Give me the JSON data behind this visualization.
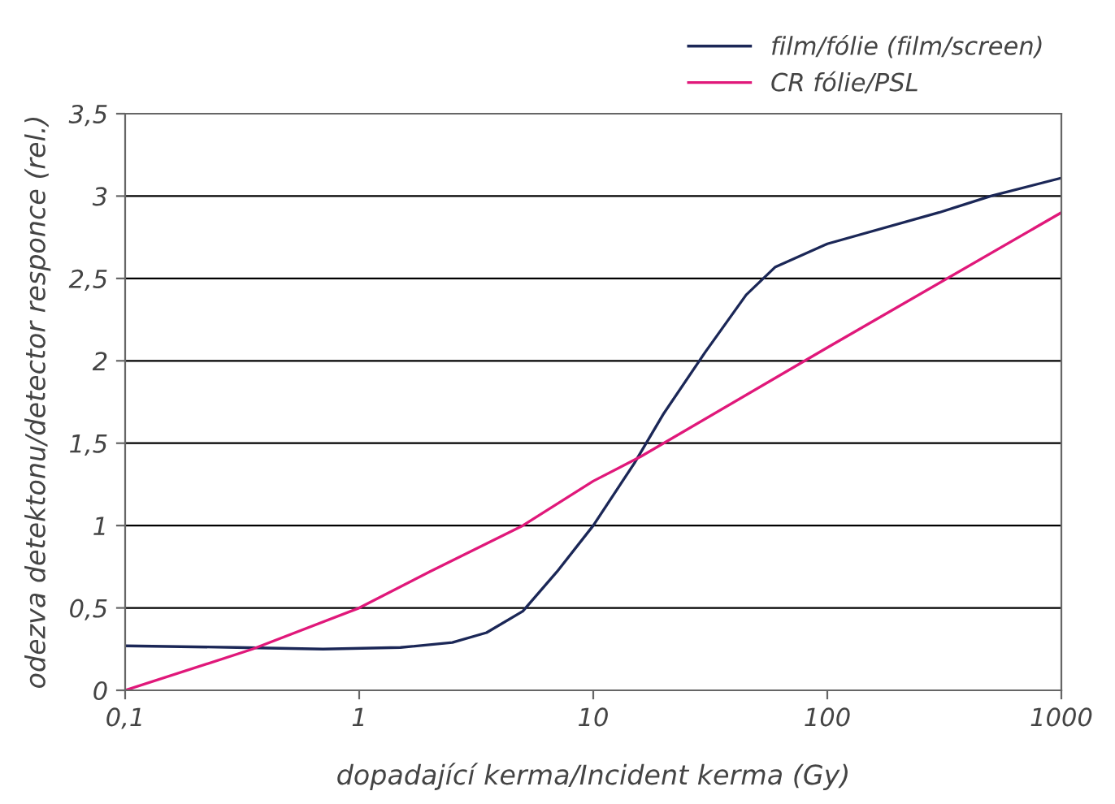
{
  "chart_data": {
    "type": "line",
    "xlabel": "dopadající kerma/Incident kerma (Gy)",
    "ylabel": "odezva detektonu/detector responce (rel.)",
    "log": "x",
    "grid": "y",
    "legend": "top right",
    "marker": "none",
    "line_style": "solid",
    "xlim": [
      0.1,
      1000
    ],
    "xticks": [
      {
        "value": 0.1,
        "label": "0,1"
      },
      1,
      10,
      100,
      1000
    ],
    "ylim": [
      0,
      3.5
    ],
    "yticks": [
      0,
      {
        "value": 0.5,
        "label": "0,5"
      },
      1,
      {
        "value": 1.5,
        "label": "1,5"
      },
      2,
      {
        "value": 2.5,
        "label": "2,5"
      },
      3,
      {
        "value": 3.5,
        "label": "3,5"
      }
    ],
    "series": [
      {
        "name": "film/fólie (film/screen)",
        "color": "#1b2757",
        "x": [
          0.1,
          0.3,
          0.7,
          1.5,
          2.5,
          3.5,
          5,
          7,
          10,
          15,
          20,
          30,
          45,
          60,
          100,
          300,
          500,
          1000
        ],
        "values": [
          0.27,
          0.26,
          0.25,
          0.26,
          0.29,
          0.35,
          0.48,
          0.72,
          1.0,
          1.38,
          1.68,
          2.05,
          2.4,
          2.57,
          2.71,
          2.9,
          3.0,
          3.11
        ]
      },
      {
        "name": "CR fólie/PSL",
        "color": "#e0187a",
        "x": [
          0.1,
          0.35,
          1,
          2,
          5,
          10,
          16,
          100,
          1000
        ],
        "values": [
          0,
          0.25,
          0.5,
          0.72,
          1.0,
          1.27,
          1.42,
          2.08,
          2.9
        ]
      }
    ]
  }
}
